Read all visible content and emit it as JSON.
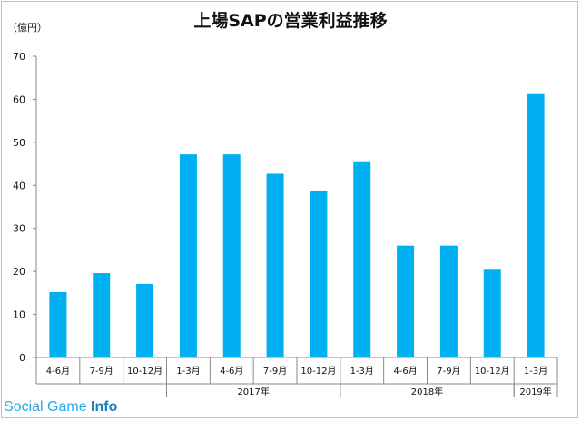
{
  "chart_data": {
    "type": "bar",
    "title": "上場SAPの営業利益推移",
    "unit_label": "（億円）",
    "categories": [
      "4-6月",
      "7-9月",
      "10-12月",
      "1-3月",
      "4-6月",
      "7-9月",
      "10-12月",
      "1-3月",
      "4-6月",
      "7-9月",
      "10-12月",
      "1-3月"
    ],
    "values": [
      15.2,
      19.6,
      17.1,
      47.2,
      47.2,
      42.7,
      38.8,
      45.6,
      26.0,
      26.0,
      20.4,
      61.2
    ],
    "year_groups": [
      {
        "label": "",
        "start": 0,
        "end": 2
      },
      {
        "label": "2017年",
        "start": 3,
        "end": 6
      },
      {
        "label": "2018年",
        "start": 7,
        "end": 10
      },
      {
        "label": "2019年",
        "start": 11,
        "end": 11
      }
    ],
    "ylim": [
      0,
      70
    ],
    "yticks": [
      0,
      10,
      20,
      30,
      40,
      50,
      60,
      70
    ],
    "bar_color": "#00b0f0",
    "grid": false
  },
  "watermark": {
    "part1": "Social Game ",
    "part2": "Info"
  }
}
